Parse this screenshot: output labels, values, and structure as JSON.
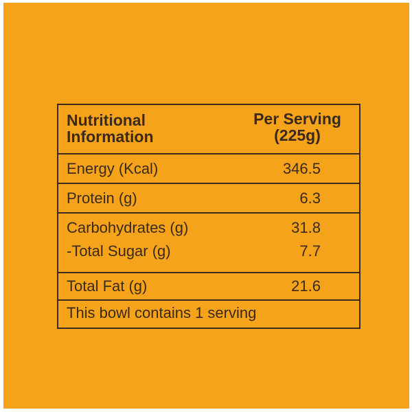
{
  "header": {
    "nutrient_label": "Nutritional\nInformation",
    "serving_label": "Per Serving\n(225g)"
  },
  "rows": [
    {
      "label": "Energy (Kcal)",
      "value": "346.5"
    },
    {
      "label": "Protein (g)",
      "value": "6.3"
    },
    {
      "label": "Carbohydrates (g)",
      "value": "31.8"
    },
    {
      "label": "-Total Sugar (g)",
      "value": "7.7"
    },
    {
      "label": "Total Fat (g)",
      "value": "21.6"
    }
  ],
  "note": "This bowl contains 1 serving",
  "colors": {
    "background": "#f5a31a",
    "text_and_border": "#3b2a1c"
  }
}
